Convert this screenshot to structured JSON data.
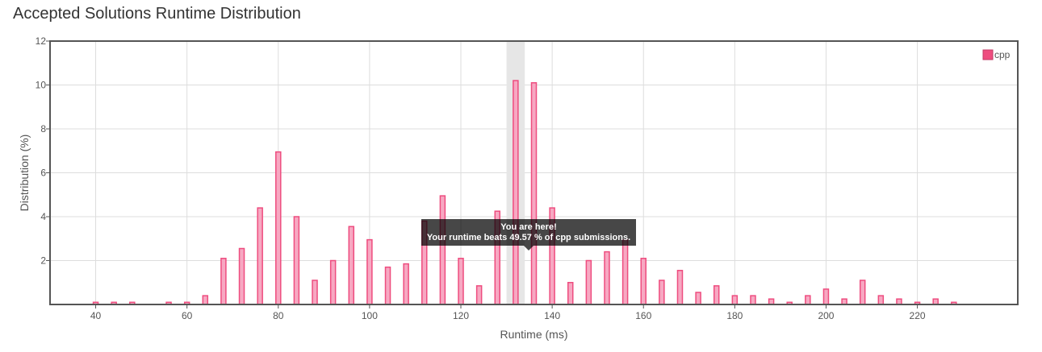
{
  "page": {
    "title": "Accepted Solutions Runtime Distribution"
  },
  "tooltip": {
    "line1": "You are here!",
    "line2": "Your runtime beats 49.57 % of cpp submissions."
  },
  "chart_data": {
    "type": "bar",
    "title": "",
    "xlabel": "Runtime (ms)",
    "ylabel": "Distribution (%)",
    "xlim": [
      30,
      242
    ],
    "ylim": [
      0,
      12
    ],
    "xticks": [
      40,
      60,
      80,
      100,
      120,
      140,
      160,
      180,
      200,
      220
    ],
    "yticks": [
      2,
      4,
      6,
      8,
      10,
      12
    ],
    "grid": true,
    "legend_position": "top-right",
    "highlight_x": 132,
    "series": [
      {
        "name": "cpp",
        "color": "#ee4d7f",
        "fill": "#f7a8c2",
        "points": [
          [
            40,
            0.1
          ],
          [
            44,
            0.1
          ],
          [
            48,
            0.1
          ],
          [
            56,
            0.1
          ],
          [
            60,
            0.1
          ],
          [
            64,
            0.4
          ],
          [
            68,
            2.1
          ],
          [
            72,
            2.55
          ],
          [
            76,
            4.4
          ],
          [
            80,
            6.95
          ],
          [
            84,
            4.0
          ],
          [
            88,
            1.1
          ],
          [
            92,
            2.0
          ],
          [
            96,
            3.55
          ],
          [
            100,
            2.95
          ],
          [
            104,
            1.7
          ],
          [
            108,
            1.85
          ],
          [
            112,
            3.8
          ],
          [
            116,
            4.95
          ],
          [
            120,
            2.1
          ],
          [
            124,
            0.85
          ],
          [
            128,
            4.25
          ],
          [
            132,
            10.2
          ],
          [
            136,
            10.1
          ],
          [
            140,
            4.4
          ],
          [
            144,
            1.0
          ],
          [
            148,
            2.0
          ],
          [
            152,
            2.4
          ],
          [
            156,
            2.95
          ],
          [
            160,
            2.1
          ],
          [
            164,
            1.1
          ],
          [
            168,
            1.55
          ],
          [
            172,
            0.55
          ],
          [
            176,
            0.85
          ],
          [
            180,
            0.4
          ],
          [
            184,
            0.4
          ],
          [
            188,
            0.25
          ],
          [
            192,
            0.1
          ],
          [
            196,
            0.4
          ],
          [
            200,
            0.7
          ],
          [
            204,
            0.25
          ],
          [
            208,
            1.1
          ],
          [
            212,
            0.4
          ],
          [
            216,
            0.25
          ],
          [
            220,
            0.1
          ],
          [
            224,
            0.25
          ],
          [
            228,
            0.1
          ]
        ]
      }
    ]
  }
}
